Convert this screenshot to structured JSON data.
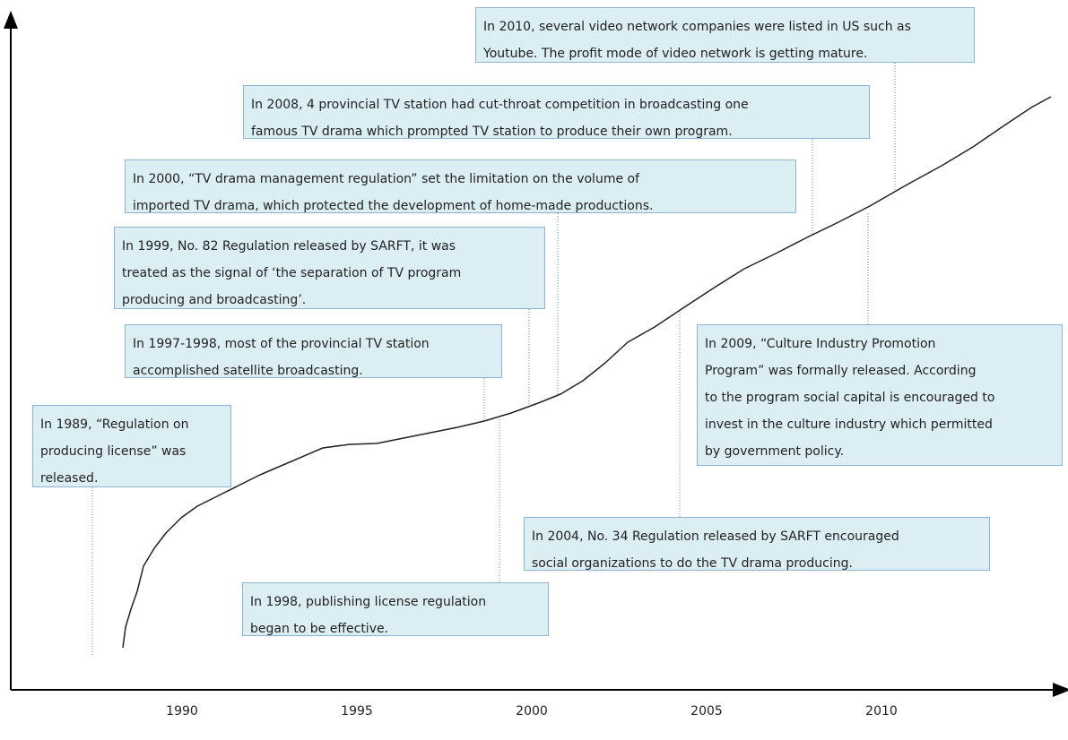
{
  "axis": {
    "ticks": [
      1990,
      1995,
      2000,
      2005,
      2010
    ]
  },
  "annotations": [
    {
      "lines": [
        "In 2010, several video network companies were listed in US such as",
        "Youtube. The profit mode of video network is getting mature."
      ]
    },
    {
      "lines": [
        "In 2008, 4 provincial TV station had cut-throat competition in broadcasting one",
        "famous TV drama which prompted TV station to produce their own program."
      ]
    },
    {
      "lines": [
        "In 2000, “TV drama management  regulation” set the limitation on the volume of",
        "imported TV drama, which protected the development of home-made productions."
      ]
    },
    {
      "lines": [
        "In 1999, No. 82 Regulation released by SARFT, it was",
        "treated as the signal of ‘the separation of TV program",
        "producing and broadcasting’."
      ]
    },
    {
      "lines": [
        "In 1997-1998, most of the provincial TV station",
        "accomplished satellite broadcasting."
      ]
    },
    {
      "lines": [
        "In 1989, “Regulation on",
        "producing license” was",
        "released."
      ]
    },
    {
      "lines": [
        "In 2009, “Culture Industry Promotion",
        "Program” was formally released.  According",
        "to the program social capital is encouraged to",
        "invest in the culture industry which permitted",
        "by government policy."
      ]
    },
    {
      "lines": [
        "In 2004, No. 34 Regulation released by SARFT encouraged",
        "social organizations to do the TV drama producing."
      ]
    },
    {
      "lines": [
        "In 1998, publishing license regulation",
        "began to be effective."
      ]
    }
  ]
}
